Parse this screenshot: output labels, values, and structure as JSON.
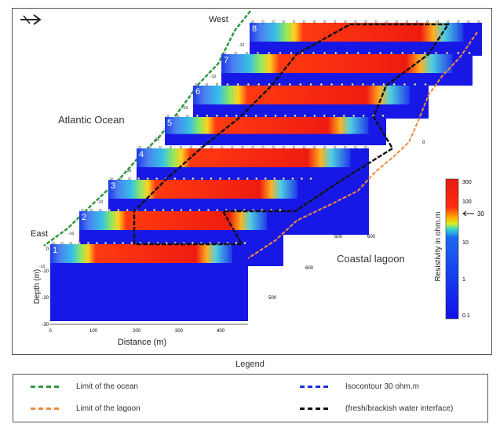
{
  "map": {
    "compass_symbol": "compass-arrow-icon",
    "labels": {
      "west": "West",
      "east": "East",
      "ocean": "Atlantic Ocean",
      "lagoon": "Coastal lagoon"
    },
    "axes": {
      "ylabel": "Depth (m)",
      "xlabel": "Distance (m)",
      "y_ticks": [
        "0",
        "-10",
        "-20",
        "-30"
      ],
      "x_ticks": [
        "0",
        "100",
        "200",
        "300",
        "400"
      ],
      "section_distance_labels": [
        "500",
        "600",
        "600",
        "600",
        "0"
      ]
    },
    "sections": [
      "1",
      "2",
      "3",
      "4",
      "5",
      "6",
      "7",
      "8"
    ],
    "colorbar": {
      "label": "Resistivity in ohm.m",
      "ticks": [
        "300",
        "100",
        "10",
        "1",
        "0.1"
      ],
      "threshold": "30",
      "range": [
        0.1,
        300
      ],
      "scale": "log"
    }
  },
  "legend": {
    "title": "Legend",
    "items": [
      {
        "label": "Limit of the ocean",
        "color": "#2e9b3c"
      },
      {
        "label": "Isocontour 30 ohm.m",
        "color": "#1a2fd6"
      },
      {
        "label": "Limit of the lagoon",
        "color": "#f08a3c"
      },
      {
        "label": "(fresh/brackish water interface)",
        "color": "#111111"
      }
    ]
  }
}
